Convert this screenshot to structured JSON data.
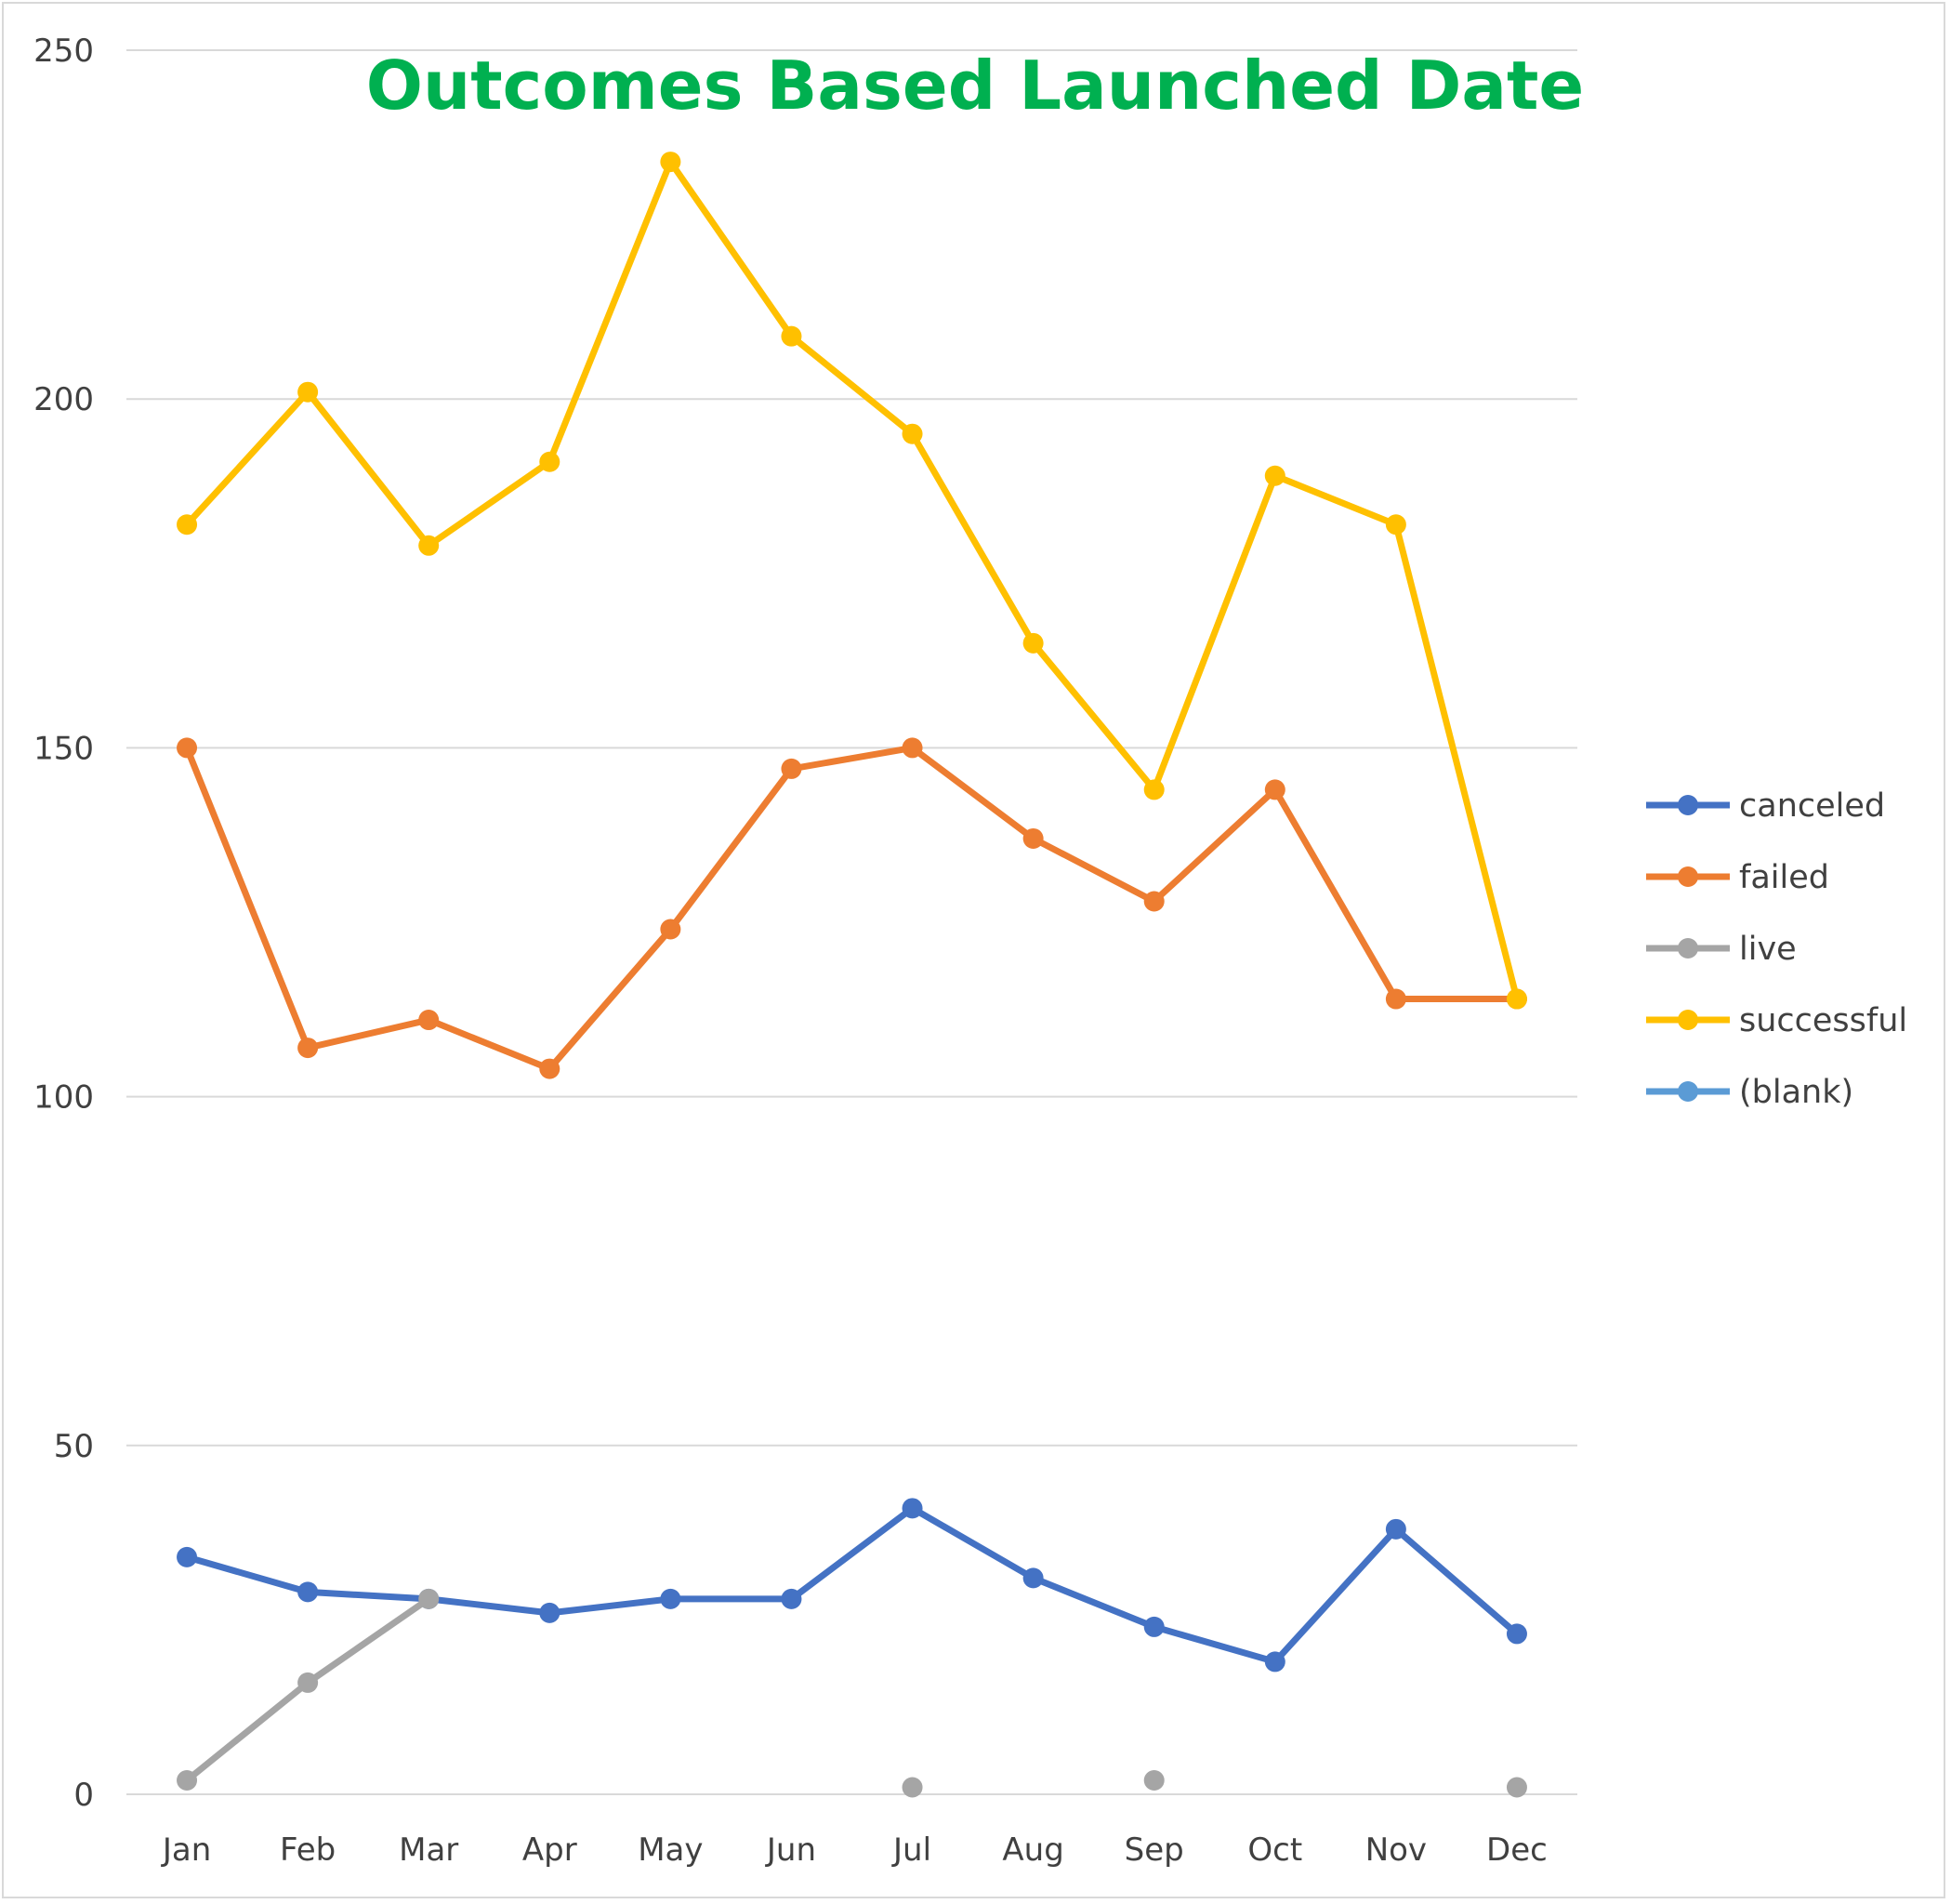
{
  "chart_data": {
    "type": "line",
    "title": "Outcomes Based Launched Date",
    "xlabel": "",
    "ylabel": "",
    "categories": [
      "Jan",
      "Feb",
      "Mar",
      "Apr",
      "May",
      "Jun",
      "Jul",
      "Aug",
      "Sep",
      "Oct",
      "Nov",
      "Dec"
    ],
    "ylim": [
      0,
      250
    ],
    "yticks": [
      "0",
      "50",
      "100",
      "150",
      "200",
      "250"
    ],
    "grid": true,
    "legend_position": "right",
    "series": [
      {
        "name": "canceled",
        "color": "#4472c4",
        "values": [
          34,
          29,
          28,
          26,
          28,
          28,
          41,
          31,
          24,
          19,
          38,
          23
        ]
      },
      {
        "name": "failed",
        "color": "#ed7d31",
        "values": [
          150,
          107,
          111,
          104,
          124,
          147,
          150,
          137,
          128,
          144,
          114,
          114
        ]
      },
      {
        "name": "live",
        "color": "#a5a5a5",
        "values": [
          2,
          16,
          28,
          null,
          null,
          null,
          1,
          null,
          2,
          null,
          null,
          1
        ]
      },
      {
        "name": "successful",
        "color": "#ffc000",
        "values": [
          182,
          201,
          179,
          191,
          234,
          209,
          195,
          165,
          144,
          189,
          182,
          114
        ]
      },
      {
        "name": "(blank)",
        "color": "#5b9bd5",
        "values": [
          null,
          null,
          null,
          null,
          null,
          null,
          null,
          null,
          null,
          null,
          null,
          null
        ]
      }
    ]
  }
}
